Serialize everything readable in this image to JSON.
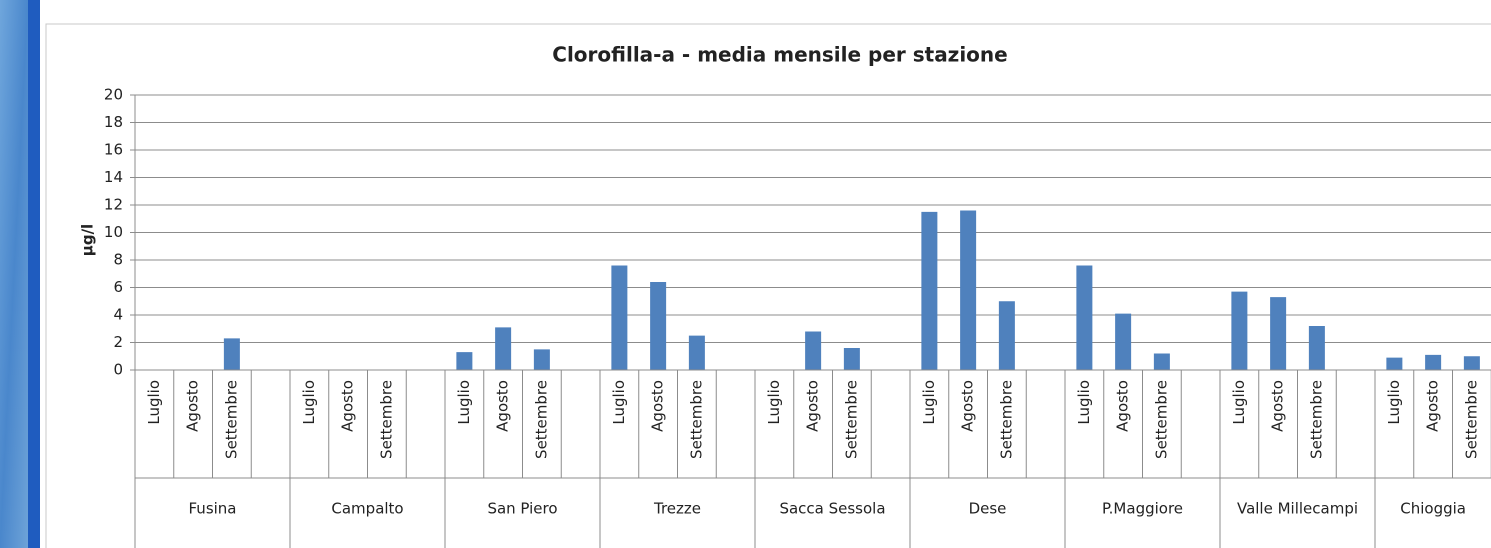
{
  "chart_data": {
    "type": "bar",
    "title": "Clorofilla-a - media mensile per stazione",
    "y_label": "µg/l",
    "groups": [
      "Fusina",
      "Campalto",
      "San Piero",
      "Trezze",
      "Sacca Sessola",
      "Dese",
      "P.Maggiore",
      "Valle Millecampi",
      "Chioggia"
    ],
    "categories": [
      "Luglio",
      "Agosto",
      "Settembre",
      null,
      "Luglio",
      "Agosto",
      "Settembre",
      null,
      "Luglio",
      "Agosto",
      "Settembre",
      null,
      "Luglio",
      "Agosto",
      "Settembre",
      null,
      "Luglio",
      "Agosto",
      "Settembre",
      null,
      "Luglio",
      "Agosto",
      "Settembre",
      null,
      "Luglio",
      "Agosto",
      "Settembre",
      null,
      "Luglio",
      "Agosto",
      "Settembre",
      null,
      "Luglio",
      "Agosto",
      "Settembre"
    ],
    "values": [
      null,
      null,
      2.3,
      null,
      null,
      null,
      null,
      null,
      1.3,
      3.1,
      1.5,
      null,
      7.6,
      6.4,
      2.5,
      null,
      null,
      2.8,
      1.6,
      null,
      11.5,
      11.6,
      5.0,
      null,
      7.6,
      4.1,
      1.2,
      null,
      5.7,
      5.3,
      3.2,
      null,
      0.9,
      1.1,
      1.0
    ],
    "color": "#4f81bd",
    "ylim": [
      0,
      20
    ],
    "yticks": [
      0,
      2,
      4,
      6,
      8,
      10,
      12,
      14,
      16,
      18,
      20
    ],
    "grid": true
  }
}
